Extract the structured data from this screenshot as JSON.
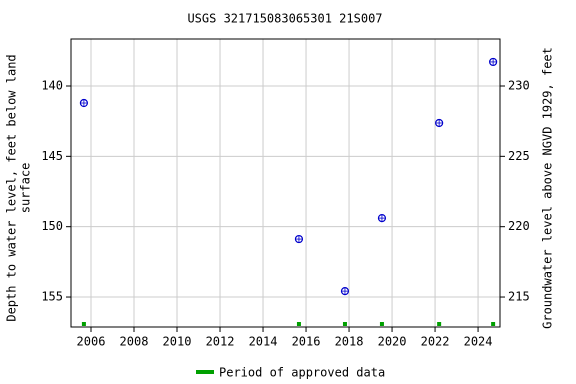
{
  "chart_data": {
    "type": "scatter",
    "title": "USGS 321715083065301 21S007",
    "ylabel": [
      "Depth to water level, feet below land",
      "surface"
    ],
    "y2label": "Groundwater level above NGVD 1929, feet",
    "x": [
      2005.67,
      2015.67,
      2017.81,
      2019.53,
      2022.19,
      2024.7
    ],
    "values": [
      141.21,
      150.88,
      154.58,
      149.39,
      142.63,
      138.29
    ],
    "color": "#0000cc",
    "xlim": [
      2005.07,
      2025.02
    ],
    "xticks": [
      2006,
      2008,
      2010,
      2012,
      2014,
      2016,
      2018,
      2020,
      2022,
      2024
    ],
    "ylim": [
      157.13,
      136.66
    ],
    "yticks": [
      140,
      145,
      150,
      155
    ],
    "y2lim": [
      212.87,
      233.34
    ],
    "y2ticks": [
      215,
      220,
      225,
      230
    ],
    "grid": true,
    "approved": {
      "name": "Period of approved data",
      "color": "#00a000",
      "x": [
        2005.67,
        2015.67,
        2017.81,
        2019.53,
        2022.19,
        2024.7
      ]
    }
  }
}
